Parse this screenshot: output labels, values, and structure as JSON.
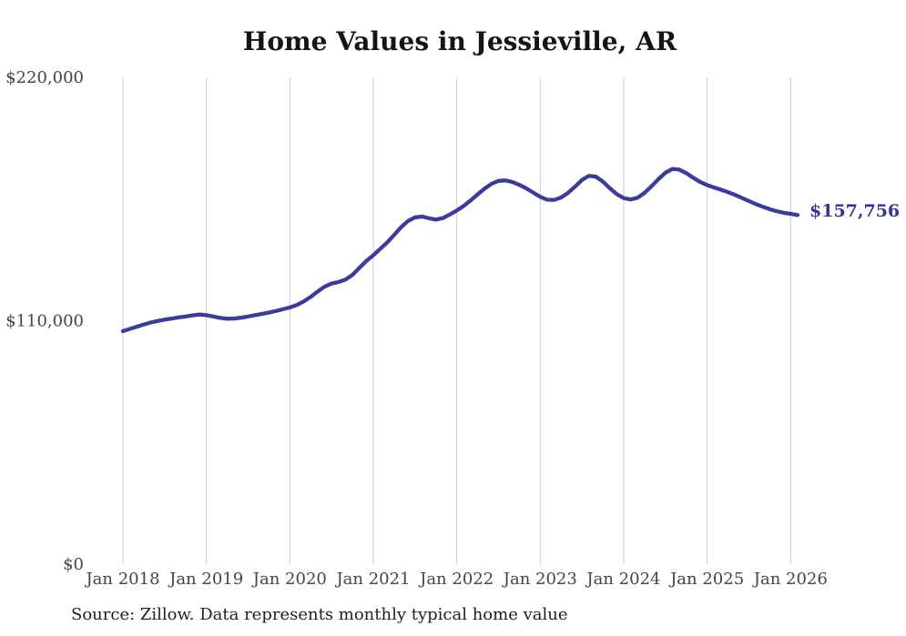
{
  "title": "Home Values in Jessieville, AR",
  "source_note": "Source: Zillow. Data represents monthly typical home value",
  "colors": {
    "background": "#ffffff",
    "line": "#3b3b9d",
    "grid": "#cccccc",
    "axis_text": "#444444",
    "title_text": "#141414",
    "final_label_text": "#33339b"
  },
  "chart_data": {
    "type": "line",
    "title": "Home Values in Jessieville, AR",
    "xlabel": "",
    "ylabel": "",
    "ylim": [
      0,
      220000
    ],
    "grid": "vertical-only",
    "legend_position": "none",
    "y_tick_labels": [
      "$0",
      "$110,000",
      "$220,000"
    ],
    "y_tick_values": [
      0,
      110000,
      220000
    ],
    "x_tick_labels": [
      "Jan 2018",
      "Jan 2019",
      "Jan 2020",
      "Jan 2021",
      "Jan 2022",
      "Jan 2023",
      "Jan 2024",
      "Jan 2025",
      "Jan 2026"
    ],
    "final_value": 157756,
    "final_value_label": "$157,756",
    "series": [
      {
        "name": "Monthly typical home value",
        "months": [
          "2018-01",
          "2018-02",
          "2018-03",
          "2018-04",
          "2018-05",
          "2018-06",
          "2018-07",
          "2018-08",
          "2018-09",
          "2018-10",
          "2018-11",
          "2018-12",
          "2019-01",
          "2019-02",
          "2019-03",
          "2019-04",
          "2019-05",
          "2019-06",
          "2019-07",
          "2019-08",
          "2019-09",
          "2019-10",
          "2019-11",
          "2019-12",
          "2020-01",
          "2020-02",
          "2020-03",
          "2020-04",
          "2020-05",
          "2020-06",
          "2020-07",
          "2020-08",
          "2020-09",
          "2020-10",
          "2020-11",
          "2020-12",
          "2021-01",
          "2021-02",
          "2021-03",
          "2021-04",
          "2021-05",
          "2021-06",
          "2021-07",
          "2021-08",
          "2021-09",
          "2021-10",
          "2021-11",
          "2021-12",
          "2022-01",
          "2022-02",
          "2022-03",
          "2022-04",
          "2022-05",
          "2022-06",
          "2022-07",
          "2022-08",
          "2022-09",
          "2022-10",
          "2022-11",
          "2022-12",
          "2023-01",
          "2023-02",
          "2023-03",
          "2023-04",
          "2023-05",
          "2023-06",
          "2023-07",
          "2023-08",
          "2023-09",
          "2023-10",
          "2023-11",
          "2023-12",
          "2024-01",
          "2024-02",
          "2024-03",
          "2024-04",
          "2024-05",
          "2024-06",
          "2024-07",
          "2024-08",
          "2024-09",
          "2024-10",
          "2024-11",
          "2024-12",
          "2025-01",
          "2025-02",
          "2025-03",
          "2025-04",
          "2025-05",
          "2025-06",
          "2025-07",
          "2025-08",
          "2025-09",
          "2025-10",
          "2025-11",
          "2025-12",
          "2026-01",
          "2026-02"
        ],
        "values": [
          105300,
          106300,
          107300,
          108300,
          109200,
          109900,
          110500,
          111000,
          111500,
          111900,
          112400,
          112800,
          112500,
          111900,
          111300,
          110900,
          111000,
          111400,
          111900,
          112500,
          113100,
          113700,
          114400,
          115200,
          116000,
          117100,
          118700,
          120800,
          123200,
          125400,
          126800,
          127500,
          128600,
          130700,
          133900,
          137000,
          139600,
          142500,
          145400,
          148800,
          152300,
          155100,
          156700,
          157100,
          156300,
          155700,
          156400,
          158000,
          159800,
          161900,
          164400,
          167100,
          169700,
          171900,
          173200,
          173400,
          172700,
          171400,
          169800,
          167900,
          166000,
          164700,
          164600,
          165700,
          167800,
          170600,
          173600,
          175500,
          175100,
          172900,
          169900,
          167200,
          165400,
          164800,
          165600,
          167800,
          170800,
          174000,
          176900,
          178600,
          178300,
          176700,
          174600,
          172700,
          171300,
          170200,
          169200,
          168100,
          166900,
          165500,
          164100,
          162700,
          161500,
          160400,
          159500,
          158800,
          158300,
          157756
        ]
      }
    ]
  }
}
